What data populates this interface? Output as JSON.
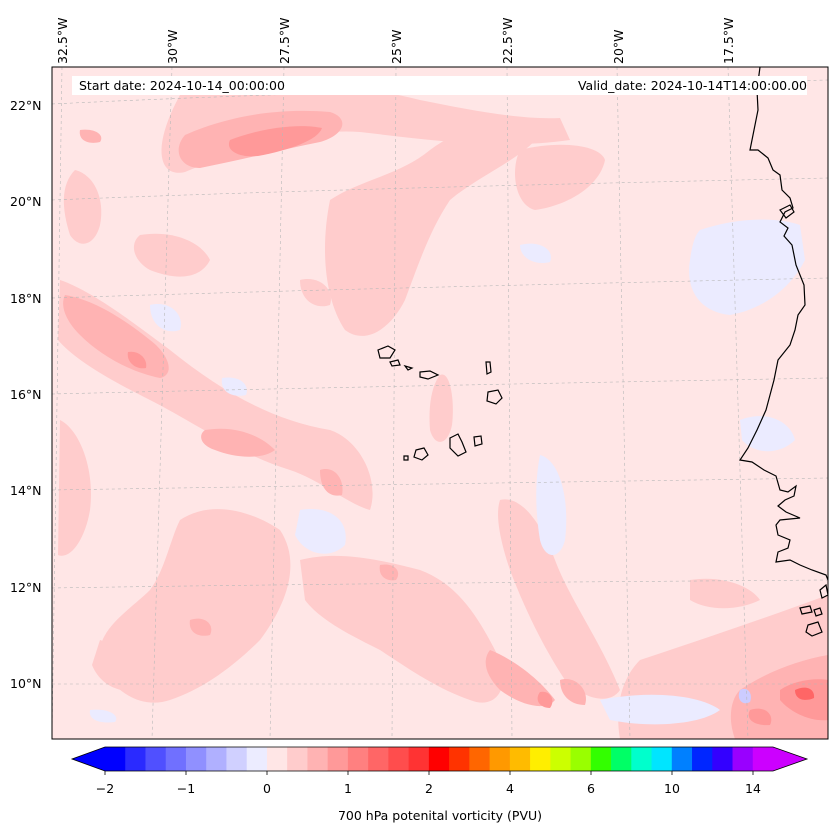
{
  "map": {
    "start_label": "Start date: 2024-10-14_00:00:00",
    "valid_label": "Valid_date: 2024-10-14T14:00:00.00",
    "lon_labels": [
      "32.5°W",
      "30°W",
      "27.5°W",
      "25°W",
      "22.5°W",
      "20°W",
      "17.5°W"
    ],
    "lat_labels": [
      "22°N",
      "20°N",
      "18°N",
      "16°N",
      "14°N",
      "12°N",
      "10°N"
    ],
    "field": "700 hPa potenital vorticity (PVU)",
    "background_color": "#ffe6e6",
    "colors": {
      "light_pink": "#ffcccc",
      "pink": "#ffb3b3",
      "strong_pink": "#ff9999",
      "red": "#ff6666",
      "light_blue": "#ebebff",
      "blue": "#ccccff",
      "coastline": "#000000"
    }
  },
  "colorbar": {
    "title": "700 hPa potenital vorticity (PVU)",
    "ticks": [
      "−2",
      "−1",
      "0",
      "1",
      "2",
      "4",
      "6",
      "10",
      "14"
    ],
    "levels": [
      -2,
      -1.75,
      -1.5,
      -1.25,
      -1,
      -0.75,
      -0.5,
      -0.25,
      0,
      0.25,
      0.5,
      0.75,
      1,
      1.25,
      1.5,
      1.75,
      2,
      2.5,
      3,
      3.5,
      4,
      4.5,
      5,
      5.5,
      6,
      7,
      8,
      9,
      10,
      11,
      12,
      13,
      14
    ],
    "colors": [
      "#0000ff",
      "#2a2aff",
      "#5050ff",
      "#7070ff",
      "#9090ff",
      "#b0b0ff",
      "#d0d0ff",
      "#ececff",
      "#ffe6e6",
      "#ffcccc",
      "#ffb3b3",
      "#ff9999",
      "#ff8080",
      "#ff6666",
      "#ff4d4d",
      "#ff3333",
      "#ff0000",
      "#ff3300",
      "#ff6600",
      "#ff9900",
      "#ffbb00",
      "#ffee00",
      "#ccff00",
      "#99ff00",
      "#33ff00",
      "#00ff66",
      "#00ffcc",
      "#00e5ff",
      "#0080ff",
      "#0026ff",
      "#3300ff",
      "#9900ff",
      "#cc00ff"
    ]
  }
}
